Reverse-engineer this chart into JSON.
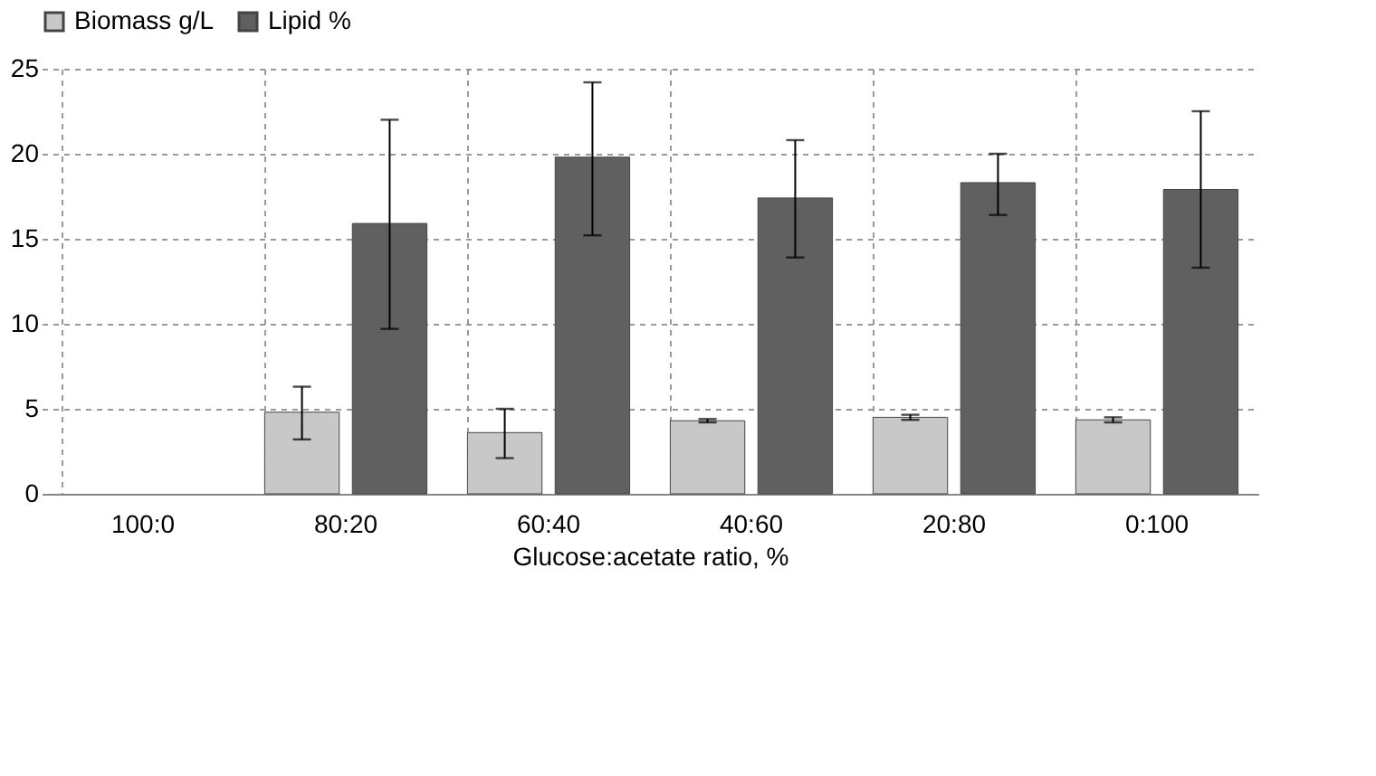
{
  "chart_data": {
    "type": "bar",
    "xlabel": "Glucose:acetate ratio, %",
    "categories": [
      "100:0",
      "80:20",
      "60:40",
      "40:60",
      "20:80",
      "0:100"
    ],
    "series": [
      {
        "name": "Biomass g/L",
        "color": "#c8c8c8",
        "values": [
          null,
          4.8,
          3.6,
          4.3,
          4.5,
          4.35
        ],
        "errors": [
          null,
          [
            3.2,
            6.3
          ],
          [
            2.1,
            5.0
          ],
          [
            4.2,
            4.4
          ],
          [
            4.35,
            4.65
          ],
          [
            4.2,
            4.5
          ]
        ]
      },
      {
        "name": "Lipid %",
        "color": "#606060",
        "values": [
          null,
          15.9,
          19.8,
          17.4,
          18.3,
          17.9
        ],
        "errors": [
          null,
          [
            9.7,
            22.0
          ],
          [
            15.2,
            24.2
          ],
          [
            13.9,
            20.8
          ],
          [
            16.4,
            20.0
          ],
          [
            13.3,
            22.5
          ]
        ]
      }
    ],
    "ylim": [
      0,
      25
    ],
    "yticks": [
      0,
      5,
      10,
      15,
      20,
      25
    ],
    "grid": true,
    "legend": "top"
  }
}
